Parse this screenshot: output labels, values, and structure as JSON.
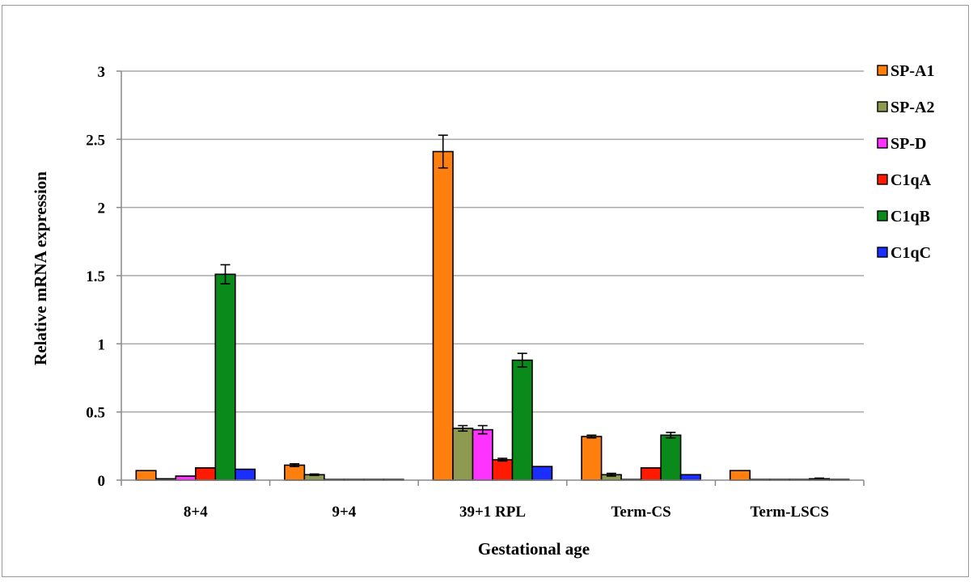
{
  "chart_data": {
    "type": "bar",
    "title": "",
    "xlabel": "Gestational age",
    "ylabel": "Relative mRNA expression",
    "ylim": [
      0,
      3
    ],
    "yticks": [
      0,
      0.5,
      1,
      1.5,
      2,
      2.5,
      3
    ],
    "ytick_labels": [
      "0",
      "0.5",
      "1",
      "1.5",
      "2",
      "2.5",
      "3"
    ],
    "grid": true,
    "legend_position": "right",
    "categories": [
      "8+4",
      "9+4",
      "39+1 RPL",
      "Term-CS",
      "Term-LSCS"
    ],
    "series": [
      {
        "name": "SP-A1",
        "color": "#ff7f0e",
        "values": [
          0.07,
          0.11,
          2.41,
          0.32,
          0.07
        ],
        "errors": [
          0,
          0.01,
          0.12,
          0.01,
          0
        ]
      },
      {
        "name": "SP-A2",
        "color": "#8d9a4f",
        "values": [
          0.01,
          0.04,
          0.38,
          0.04,
          0.005
        ],
        "errors": [
          0,
          0.005,
          0.02,
          0.01,
          0
        ]
      },
      {
        "name": "SP-D",
        "color": "#ff33ff",
        "values": [
          0.03,
          0.005,
          0.37,
          0.005,
          0.005
        ],
        "errors": [
          0,
          0,
          0.03,
          0,
          0
        ]
      },
      {
        "name": "C1qA",
        "color": "#ff1a00",
        "values": [
          0.09,
          0.005,
          0.15,
          0.09,
          0.005
        ],
        "errors": [
          0,
          0,
          0.01,
          0,
          0
        ]
      },
      {
        "name": "C1qB",
        "color": "#0a8a1a",
        "values": [
          1.51,
          0.005,
          0.88,
          0.33,
          0.01
        ],
        "errors": [
          0.07,
          0,
          0.05,
          0.02,
          0.005
        ]
      },
      {
        "name": "C1qC",
        "color": "#1a2eff",
        "values": [
          0.08,
          0.005,
          0.1,
          0.04,
          0.005
        ],
        "errors": [
          0,
          0,
          0,
          0,
          0
        ]
      }
    ]
  }
}
